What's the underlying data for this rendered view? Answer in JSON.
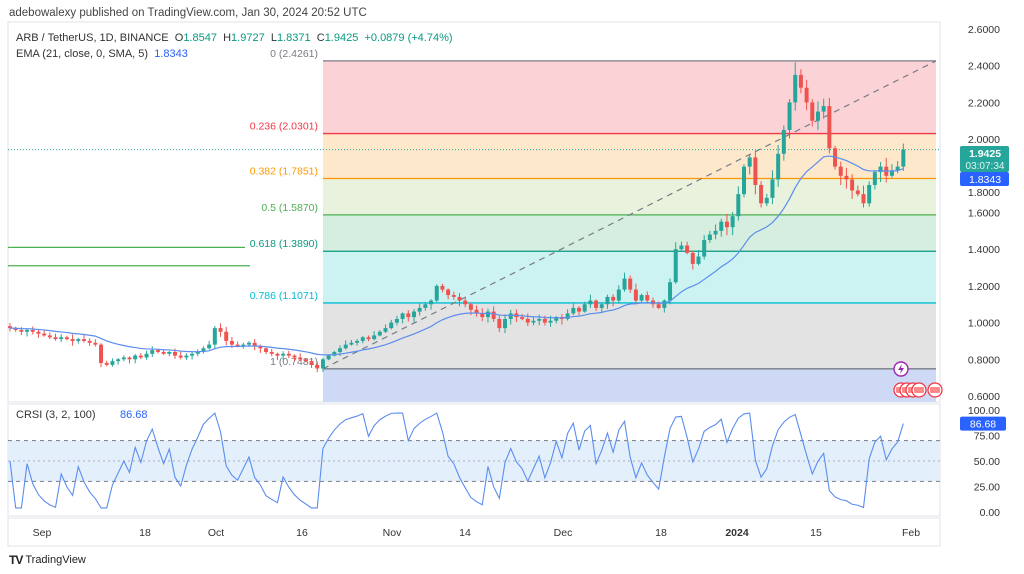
{
  "attribution": "adebowalexy published on TradingView.com, Jan 30, 2024 20:52 UTC",
  "legend": {
    "symbol": "ARB / TetherUS, 1D, BINANCE",
    "open_label": "O",
    "open": "1.8547",
    "high_label": "H",
    "high": "1.9727",
    "low_label": "L",
    "low": "1.8371",
    "close_label": "C",
    "close": "1.9425",
    "change": "+0.0879 (+4.74%)",
    "ema_label": "EMA (21, close, 0, SMA, 5)",
    "ema_value": "1.8343"
  },
  "price_axis": {
    "ticks": [
      "2.6000",
      "2.4000",
      "2.2000",
      "2.0000",
      "1.8000",
      "1.6000",
      "1.4000",
      "1.2000",
      "1.0000",
      "0.8000",
      "0.6000"
    ],
    "last_price": "1.9425",
    "countdown": "03:07:34",
    "ema_tag": "1.8343"
  },
  "fib_levels": [
    {
      "ratio": "0",
      "label": "0 (2.4261)",
      "price": 2.4261,
      "color": "#787b86"
    },
    {
      "ratio": "0.236",
      "label": "0.236 (2.0301)",
      "price": 2.0301,
      "color": "#f23645"
    },
    {
      "ratio": "0.382",
      "label": "0.382 (1.7851)",
      "price": 1.7851,
      "color": "#ff9800"
    },
    {
      "ratio": "0.5",
      "label": "0.5 (1.5870)",
      "price": 1.587,
      "color": "#4caf50"
    },
    {
      "ratio": "0.618",
      "label": "0.618 (1.3890)",
      "price": 1.389,
      "color": "#089981"
    },
    {
      "ratio": "0.786",
      "label": "0.786 (1.1071)",
      "price": 1.1071,
      "color": "#00bcd4"
    },
    {
      "ratio": "1",
      "label": "1 (0.7481)",
      "price": 0.7481,
      "color": "#787b86"
    }
  ],
  "rsi": {
    "label": "CRSI (3, 2, 100)",
    "value": "86.68",
    "ticks": [
      "100.00",
      "75.00",
      "50.00",
      "25.00",
      "0.00"
    ]
  },
  "time_axis": [
    "Sep",
    "18",
    "Oct",
    "16",
    "Nov",
    "14",
    "Dec",
    "18",
    "2024",
    "15",
    "Feb"
  ],
  "brand": "TradingView",
  "colors": {
    "up": "#26a69a",
    "down": "#ef5350",
    "ema": "#5b8def",
    "rsi": "#5b8def"
  },
  "chart_data": {
    "type": "candlestick",
    "title": "ARB / TetherUS, 1D, BINANCE",
    "start_date": "2023-08-26",
    "end_date": "2024-01-30",
    "ylim": [
      0.6,
      2.6
    ],
    "support_lines": [
      1.41,
      1.31
    ],
    "closes": [
      0.97,
      0.96,
      0.95,
      0.96,
      0.95,
      0.94,
      0.93,
      0.92,
      0.91,
      0.92,
      0.91,
      0.9,
      0.91,
      0.9,
      0.89,
      0.88,
      0.78,
      0.77,
      0.79,
      0.8,
      0.81,
      0.8,
      0.82,
      0.81,
      0.83,
      0.85,
      0.84,
      0.83,
      0.84,
      0.82,
      0.81,
      0.82,
      0.83,
      0.84,
      0.86,
      0.88,
      0.97,
      0.95,
      0.9,
      0.88,
      0.87,
      0.88,
      0.89,
      0.87,
      0.86,
      0.84,
      0.83,
      0.82,
      0.83,
      0.82,
      0.81,
      0.8,
      0.79,
      0.77,
      0.75,
      0.8,
      0.82,
      0.84,
      0.86,
      0.88,
      0.89,
      0.9,
      0.92,
      0.91,
      0.93,
      0.95,
      0.97,
      1.0,
      1.02,
      1.05,
      1.03,
      1.06,
      1.08,
      1.1,
      1.12,
      1.2,
      1.18,
      1.15,
      1.14,
      1.12,
      1.1,
      1.07,
      1.05,
      1.03,
      1.06,
      1.02,
      0.97,
      1.02,
      1.05,
      1.03,
      1.02,
      1.0,
      1.01,
      1.02,
      1.0,
      1.01,
      1.03,
      1.02,
      1.05,
      1.08,
      1.06,
      1.1,
      1.12,
      1.08,
      1.1,
      1.14,
      1.12,
      1.18,
      1.24,
      1.18,
      1.12,
      1.15,
      1.12,
      1.1,
      1.08,
      1.12,
      1.22,
      1.4,
      1.42,
      1.38,
      1.32,
      1.36,
      1.45,
      1.48,
      1.5,
      1.55,
      1.52,
      1.58,
      1.7,
      1.85,
      1.9,
      1.75,
      1.65,
      1.68,
      1.78,
      1.92,
      2.05,
      2.2,
      2.35,
      2.28,
      2.2,
      2.1,
      2.15,
      2.18,
      1.95,
      1.85,
      1.8,
      1.78,
      1.72,
      1.7,
      1.65,
      1.75,
      1.82,
      1.85,
      1.8,
      1.83,
      1.85,
      1.9425
    ]
  }
}
